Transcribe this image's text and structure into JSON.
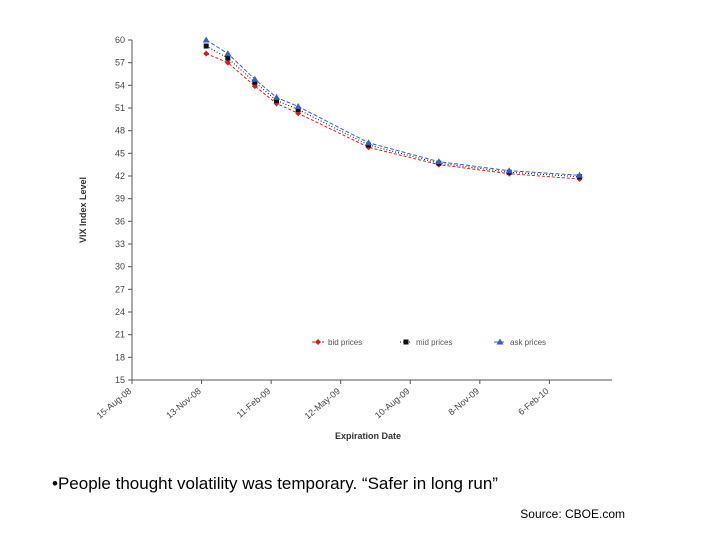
{
  "chart_data": {
    "type": "line",
    "title": "",
    "xlabel": "Expiration Date",
    "ylabel": "VIX Index Level",
    "ylim": [
      15,
      60
    ],
    "yticks": [
      15,
      18,
      21,
      24,
      27,
      30,
      33,
      36,
      39,
      42,
      45,
      48,
      51,
      54,
      57,
      60
    ],
    "yticklabels": [
      "15",
      "18",
      "21",
      "24",
      "27",
      "30",
      "33",
      "36",
      "39",
      "42",
      "45",
      "48",
      "51",
      "54",
      "57",
      "60"
    ],
    "xticklabels": [
      "15-Aug-08",
      "13-Nov-08",
      "11-Feb-09",
      "12-May-09",
      "10-Aug-09",
      "8-Nov-09",
      "6-Feb-10"
    ],
    "x": [
      "2008-11-19",
      "2008-12-17",
      "2009-01-21",
      "2009-02-18",
      "2009-03-18",
      "2009-06-17",
      "2009-09-16",
      "2009-12-16",
      "2010-03-17"
    ],
    "series": [
      {
        "name": "bid prices",
        "color": "#cc2222",
        "marker": "diamond",
        "values": [
          58.2,
          57.0,
          53.9,
          51.6,
          50.3,
          45.8,
          43.5,
          42.3,
          41.6
        ]
      },
      {
        "name": "mid prices",
        "color": "#111111",
        "marker": "square",
        "values": [
          59.2,
          57.6,
          54.4,
          52.0,
          50.8,
          46.1,
          43.7,
          42.5,
          41.9
        ]
      },
      {
        "name": "ask prices",
        "color": "#3a5fc0",
        "marker": "triangle",
        "values": [
          60.0,
          58.2,
          54.8,
          52.4,
          51.2,
          46.4,
          43.9,
          42.7,
          42.1
        ]
      }
    ],
    "grid": false,
    "legend": "bottom-inside"
  },
  "bullet_text": "•People thought volatility was temporary. “Safer in long run”",
  "source_text": "Source: CBOE.com"
}
